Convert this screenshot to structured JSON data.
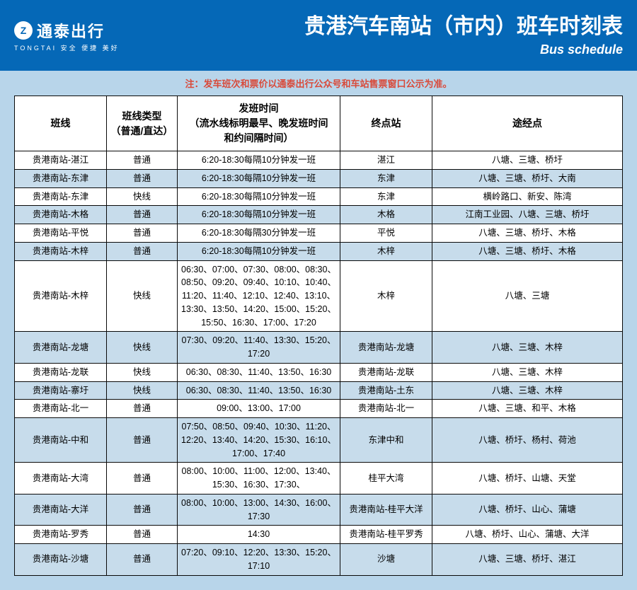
{
  "colors": {
    "header_bg": "#0568b7",
    "body_bg": "#b8d5ea",
    "notice_text": "#d94a3a",
    "border": "#0a0a0a",
    "th_bg": "#ffffff",
    "row_even_bg": "#ffffff",
    "row_odd_bg": "#c7dceb",
    "logo_icon_text": "#0568b7"
  },
  "logo": {
    "icon_letter": "Z",
    "brand": "通泰出行",
    "tagline": "TONGTAI  安全  便捷  美好"
  },
  "title": {
    "main": "贵港汽车南站（市内）班车时刻表",
    "sub": "Bus schedule"
  },
  "notice": "注：发车班次和票价以通泰出行公众号和车站售票窗口公示为准。",
  "columns": [
    "班线",
    "班线类型\n（普通/直达）",
    "发班时间\n（流水线标明最早、晚发班时间\n和约间隔时间）",
    "终点站",
    "途经点"
  ],
  "rows": [
    {
      "route": "贵港南站-湛江",
      "type": "普通",
      "time": "6:20-18:30每隔10分钟发一班",
      "dest": "湛江",
      "via": "八塘、三塘、桥圩"
    },
    {
      "route": "贵港南站-东津",
      "type": "普通",
      "time": "6:20-18:30每隔10分钟发一班",
      "dest": "东津",
      "via": "八塘、三塘、桥圩、大南"
    },
    {
      "route": "贵港南站-东津",
      "type": "快线",
      "time": "6:20-18:30每隔10分钟发一班",
      "dest": "东津",
      "via": "横岭路口、新安、陈湾"
    },
    {
      "route": "贵港南站-木格",
      "type": "普通",
      "time": "6:20-18:30每隔10分钟发一班",
      "dest": "木格",
      "via": "江南工业园、八塘、三塘、桥圩"
    },
    {
      "route": "贵港南站-平悦",
      "type": "普通",
      "time": "6:20-18:30每隔30分钟发一班",
      "dest": "平悦",
      "via": "八塘、三塘、桥圩、木格"
    },
    {
      "route": "贵港南站-木梓",
      "type": "普通",
      "time": "6:20-18:30每隔10分钟发一班",
      "dest": "木梓",
      "via": "八塘、三塘、桥圩、木格"
    },
    {
      "route": "贵港南站-木梓",
      "type": "快线",
      "time": "06:30、07:00、07:30、08:00、08:30、08:50、09:20、09:40、10:10、10:40、11:20、11:40、12:10、12:40、13:10、13:30、13:50、14:20、15:00、15:20、15:50、16:30、17:00、17:20",
      "dest": "木梓",
      "via": "八塘、三塘"
    },
    {
      "route": "贵港南站-龙塘",
      "type": "快线",
      "time": "07:30、09:20、11:40、13:30、15:20、17:20",
      "dest": "贵港南站-龙塘",
      "via": "八塘、三塘、木梓"
    },
    {
      "route": "贵港南站-龙联",
      "type": "快线",
      "time": "06:30、08:30、11:40、13:50、16:30",
      "dest": "贵港南站-龙联",
      "via": "八塘、三塘、木梓"
    },
    {
      "route": "贵港南站-寨圩",
      "type": "快线",
      "time": "06:30、08:30、11:40、13:50、16:30",
      "dest": "贵港南站-土东",
      "via": "八塘、三塘、木梓"
    },
    {
      "route": "贵港南站-北一",
      "type": "普通",
      "time": "09:00、13:00、17:00",
      "dest": "贵港南站-北一",
      "via": "八塘、三塘、和平、木格"
    },
    {
      "route": "贵港南站-中和",
      "type": "普通",
      "time": "07:50、08:50、09:40、10:30、11:20、12:20、13:40、14:20、15:30、16:10、17:00、17:40",
      "dest": "东津中和",
      "via": "八塘、桥圩、杨村、荷池"
    },
    {
      "route": "贵港南站-大湾",
      "type": "普通",
      "time": "08:00、10:00、11:00、12:00、13:40、15:30、16:30、17:30、",
      "dest": "桂平大湾",
      "via": "八塘、桥圩、山塘、天堂"
    },
    {
      "route": "贵港南站-大洋",
      "type": "普通",
      "time": "08:00、10:00、13:00、14:30、16:00、17:30",
      "dest": "贵港南站-桂平大洋",
      "via": "八塘、桥圩、山心、蒲塘"
    },
    {
      "route": "贵港南站-罗秀",
      "type": "普通",
      "time": "14:30",
      "dest": "贵港南站-桂平罗秀",
      "via": "八塘、桥圩、山心、蒲塘、大洋"
    },
    {
      "route": "贵港南站-沙塘",
      "type": "普通",
      "time": "07:20、09:10、12:20、13:30、15:20、17:10",
      "dest": "沙塘",
      "via": "八塘、三塘、桥圩、湛江"
    }
  ]
}
